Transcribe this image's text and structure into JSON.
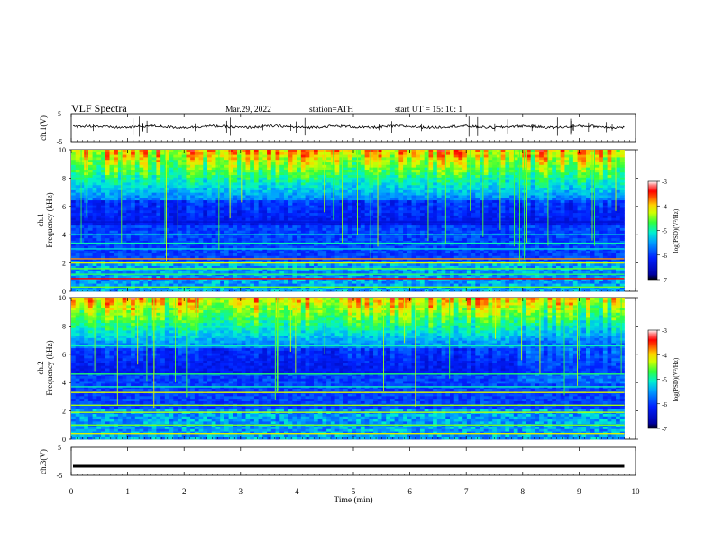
{
  "header": {
    "title": "VLF  Spectra",
    "date": "Mar.29, 2022",
    "station": "station=ATH",
    "start": "start  UT  =    15: 10: 1"
  },
  "chart_data": [
    {
      "type": "line",
      "panel": "ch1-waveform",
      "ylabel": "ch.1(V)",
      "ylim": [
        -5,
        5
      ],
      "yticks": [
        "5",
        "-5"
      ],
      "xlim": [
        0,
        10
      ],
      "note": "dense noisy waveform around ~0.3 V with spikes"
    },
    {
      "type": "heatmap",
      "panel": "ch1-spectrogram",
      "ylabel": "ch.1\nFrequency (kHz)",
      "ylabel_lines": [
        "ch.1",
        "Frequency (kHz)"
      ],
      "ylim": [
        0,
        10
      ],
      "yticks": [
        "0",
        "2",
        "4",
        "6",
        "8",
        "10"
      ],
      "xlim": [
        0,
        10
      ],
      "colorbar": {
        "label": "log(PSD)(V²/Hz)",
        "range": [
          -7,
          -3
        ],
        "ticks": [
          "-3",
          "-4",
          "-5",
          "-6",
          "-7"
        ]
      }
    },
    {
      "type": "heatmap",
      "panel": "ch2-spectrogram",
      "ylabel": "ch.2\nFrequency (kHz)",
      "ylabel_lines": [
        "ch.2",
        "Frequency (kHz)"
      ],
      "ylim": [
        0,
        10
      ],
      "yticks": [
        "0",
        "2",
        "4",
        "6",
        "8",
        "10"
      ],
      "xlim": [
        0,
        10
      ],
      "colorbar": {
        "label": "log(PSD)(V²/Hz)",
        "range": [
          -7,
          -3
        ],
        "ticks": [
          "-3",
          "-4",
          "-5",
          "-6",
          "-7"
        ]
      }
    },
    {
      "type": "line",
      "panel": "ch3-waveform",
      "ylabel": "ch.3(V)",
      "ylim": [
        -5,
        5
      ],
      "yticks": [
        "5",
        "-5"
      ],
      "xlim": [
        0,
        10
      ],
      "xlabel": "Time  (min)",
      "xticks": [
        "0",
        "1",
        "2",
        "3",
        "4",
        "5",
        "6",
        "7",
        "8",
        "9",
        "10"
      ],
      "data_end_min": 9.8,
      "constant_value": -1.6
    }
  ],
  "colors": {
    "cmap": [
      "#000000",
      "#0000a0",
      "#0020ff",
      "#00a0ff",
      "#00f0d0",
      "#30ff40",
      "#d0ff00",
      "#ffd000",
      "#ff5000",
      "#ff0000",
      "#ff8080",
      "#ffffff"
    ]
  }
}
